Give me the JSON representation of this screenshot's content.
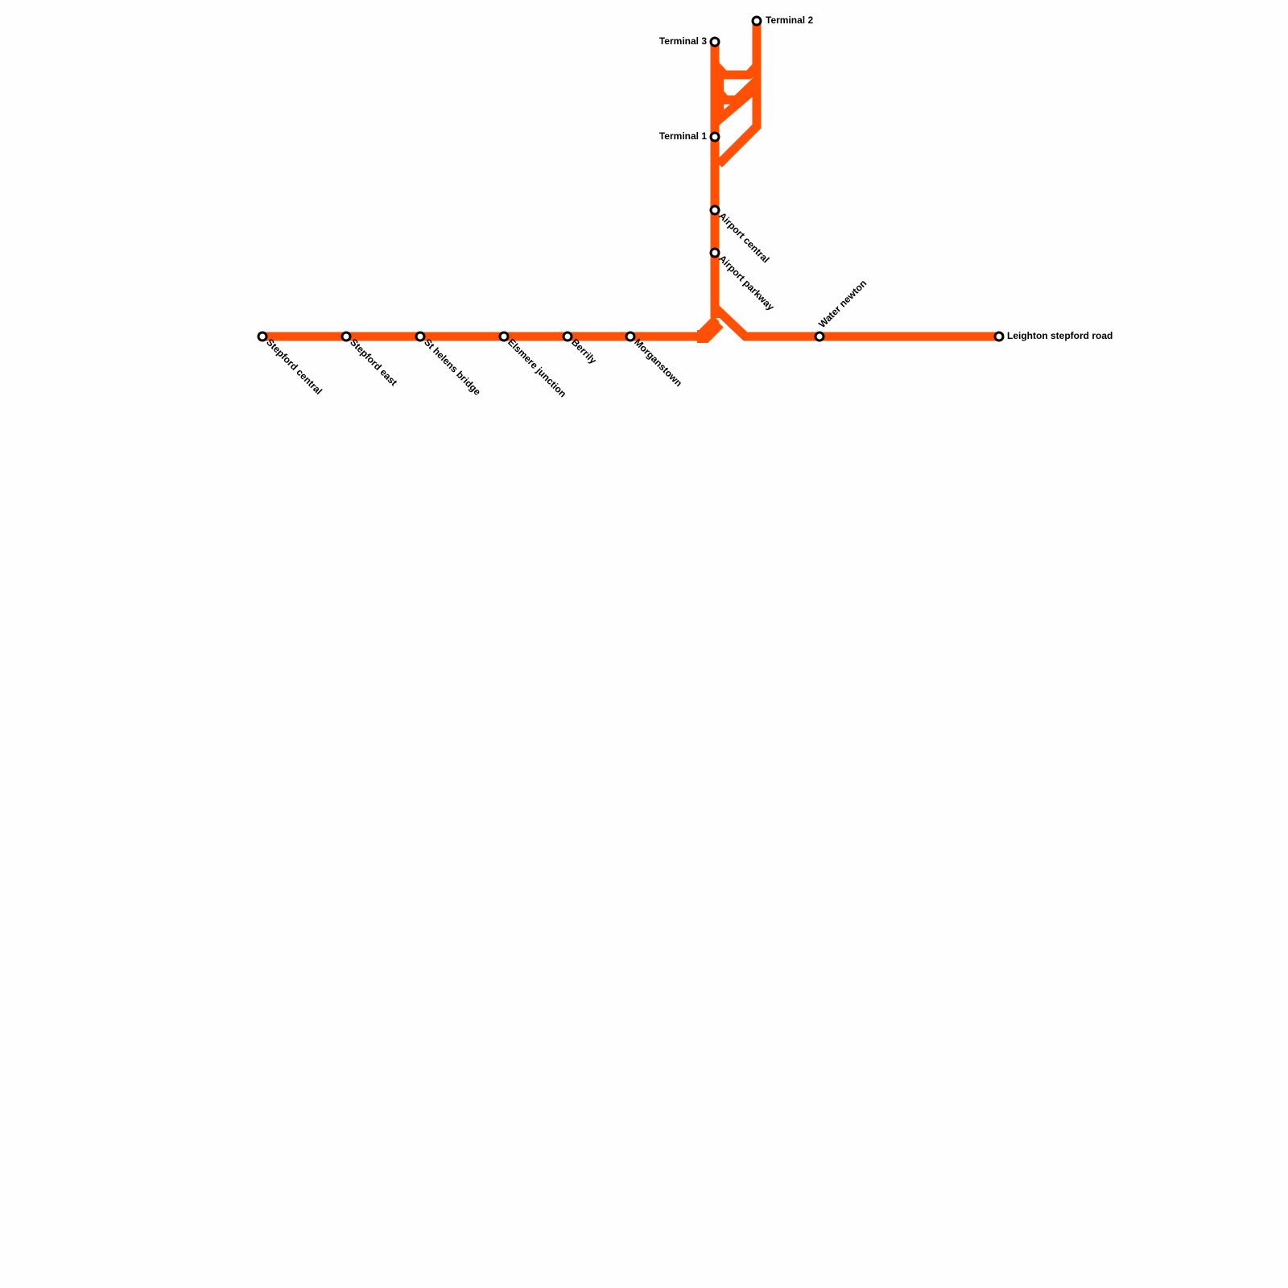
{
  "line_color": "#ff5006",
  "stations": {
    "stepford_central": "Stepford central",
    "stepford_east": "Stepford east",
    "st_helens_bridge": "St helens bridge",
    "elsmere_junction": "Elsmere junction",
    "berrily": "Berrily",
    "morganstown": "Morganstown",
    "water_newton": "Water newton",
    "leighton_stepford_road": "Leighton stepford road",
    "airport_parkway": "Airport parkway",
    "airport_central": "Airport central",
    "terminal_1": "Terminal 1",
    "terminal_2": "Terminal 2",
    "terminal_3": "Terminal 3"
  }
}
